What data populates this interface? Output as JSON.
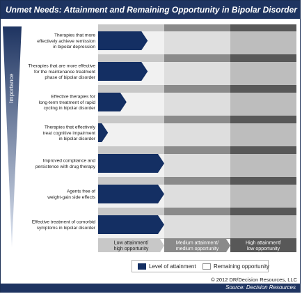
{
  "title": "Unmet Needs: Attainment and Remaining Opportunity in Bipolar Disorder",
  "footer": {
    "copyright": "© 2012 DR/Decision Resources, LLC",
    "source": "Source: Decision Resources"
  },
  "colors": {
    "title_bar": "#1e3461",
    "attainment": "#142f63",
    "zone_low": "#c8c8c8",
    "zone_medium": "#8a8a8a",
    "zone_high": "#585858"
  },
  "chart_data": {
    "type": "bar",
    "orientation": "horizontal",
    "ylabel": "Importance",
    "categories": [
      "Therapies that more effectively achieve remission in bipolar depression",
      "Therapies that are more effective for the maintenance treatment phase of bipolar disorder",
      "Effective therapies for long-term treatment of rapid cycling in bipolar disorder",
      "Therapies that effectively treat cognitive impairment in bipolar disorder",
      "Improved compliance and persistence with drug therapy",
      "Agents free of weight-gain side effects",
      "Effective treatment of comorbid symptoms in bipolar disorder"
    ],
    "category_lines": [
      [
        "Therapies that more",
        "effectively achieve remission",
        "in bipolar depression"
      ],
      [
        "Therapies that are more effective",
        "for the maintenance treatment",
        "phase of bipolar disorder"
      ],
      [
        "Effective therapies for",
        "long-term treatment of rapid",
        "cycling in bipolar disorder"
      ],
      [
        "Therapies that effectively",
        "treat cognitive impairment",
        "in bipolar disorder"
      ],
      [
        "Improved compliance and",
        "persistence with drug therapy"
      ],
      [
        "Agents free of",
        "weight-gain side effects"
      ],
      [
        "Effective treatment of comorbid",
        "symptoms in bipolar disorder"
      ]
    ],
    "xlim": [
      0,
      3
    ],
    "zones": [
      {
        "lines": [
          "Low attainment/",
          "high opportunity"
        ]
      },
      {
        "lines": [
          "Medium attainment/",
          "medium opportunity"
        ]
      },
      {
        "lines": [
          "High attainment/",
          "low opportunity"
        ]
      }
    ],
    "series": [
      {
        "name": "Level of attainment",
        "values": [
          0.75,
          0.75,
          0.43,
          0.15,
          1.0,
          1.0,
          1.0
        ]
      },
      {
        "name": "Remaining opportunity"
      }
    ],
    "legend_position": "bottom-center"
  }
}
